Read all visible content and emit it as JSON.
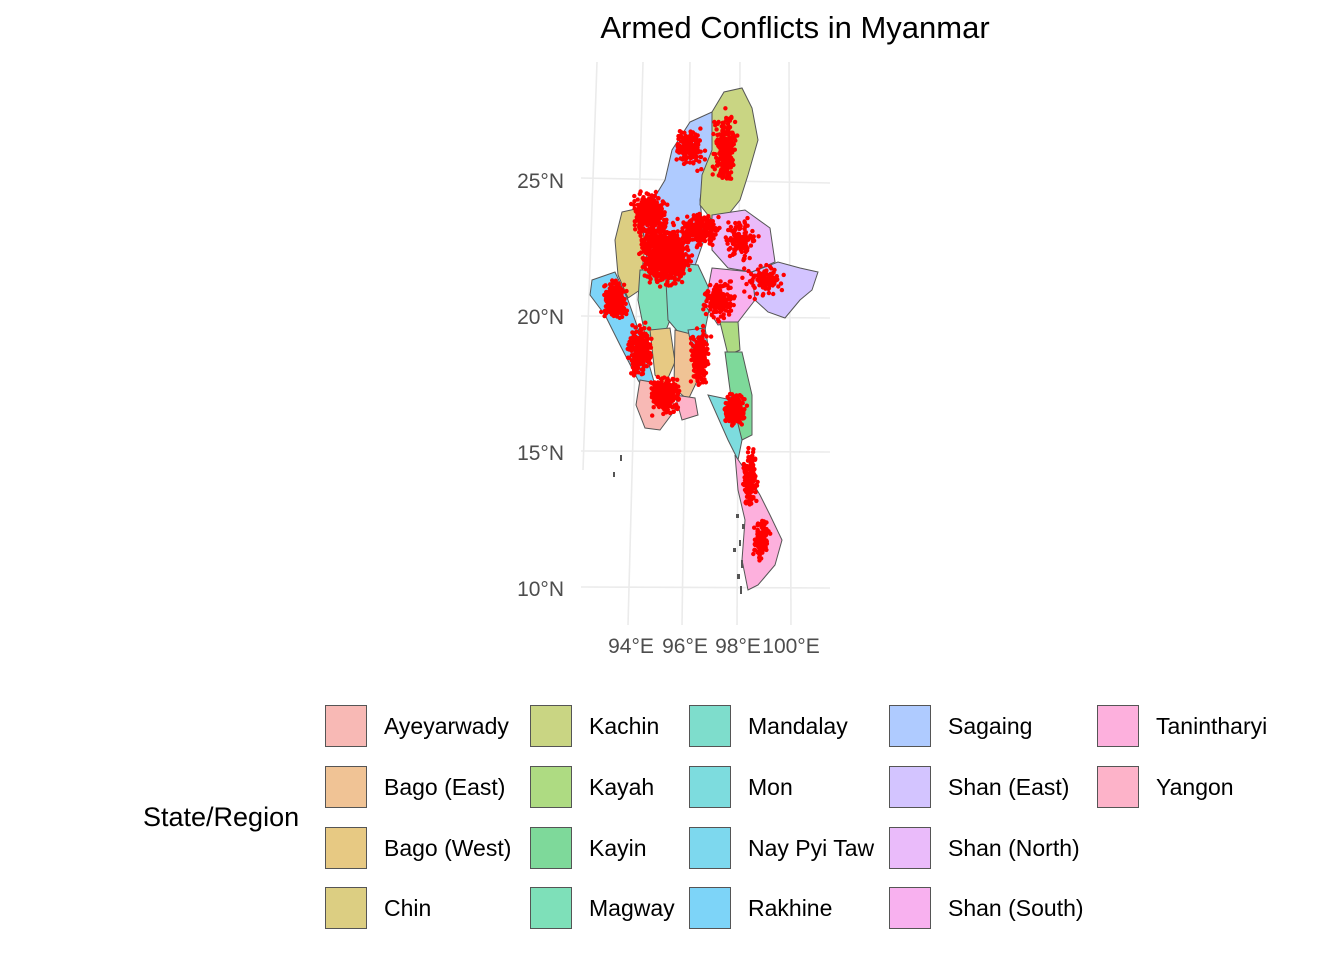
{
  "title": "Armed Conflicts in Myanmar",
  "axes": {
    "lat_labels": [
      "25°N",
      "20°N",
      "15°N",
      "10°N"
    ],
    "lon_labels": [
      "94°E",
      "96°E",
      "98°E",
      "100°E"
    ]
  },
  "legend": {
    "title": "State/Region",
    "items": [
      {
        "label": "Ayeyarwady",
        "color": "#F8B9B5"
      },
      {
        "label": "Bago (East)",
        "color": "#F0C395"
      },
      {
        "label": "Bago (West)",
        "color": "#E7C983"
      },
      {
        "label": "Chin",
        "color": "#DCCE82"
      },
      {
        "label": "Kachin",
        "color": "#C9D583"
      },
      {
        "label": "Kayah",
        "color": "#AEDB82"
      },
      {
        "label": "Kayin",
        "color": "#7ED99A"
      },
      {
        "label": "Magway",
        "color": "#7EE0B9"
      },
      {
        "label": "Mandalay",
        "color": "#7EDDCC"
      },
      {
        "label": "Mon",
        "color": "#7DDCDE"
      },
      {
        "label": "Nay Pyi Taw",
        "color": "#7DD8EE"
      },
      {
        "label": "Rakhine",
        "color": "#7DD4F8"
      },
      {
        "label": "Sagaing",
        "color": "#AFCBFF"
      },
      {
        "label": "Shan (East)",
        "color": "#D3C4FF"
      },
      {
        "label": "Shan (North)",
        "color": "#EABBFA"
      },
      {
        "label": "Shan (South)",
        "color": "#F8B1EF"
      },
      {
        "label": "Tanintharyi",
        "color": "#FDB0DD"
      },
      {
        "label": "Yangon",
        "color": "#FDB3C9"
      }
    ]
  },
  "map_data": {
    "point_color": "#FF0000",
    "grid_color": "#EBEBEB",
    "border_color": "#555555"
  }
}
